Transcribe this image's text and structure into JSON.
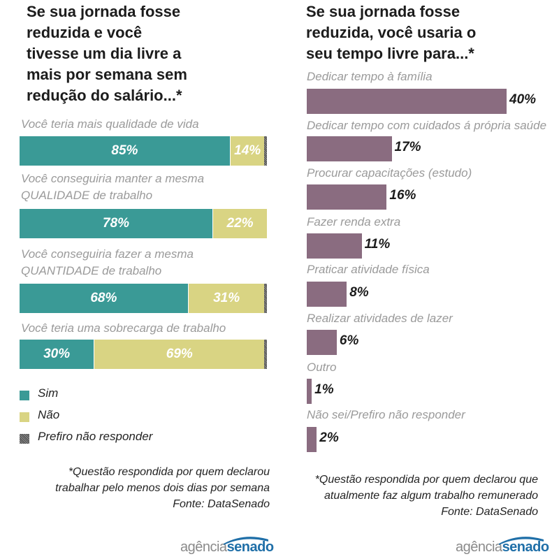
{
  "left": {
    "title": "Se sua jornada fosse\nreduzida e você\ntivesse um dia livre a\nmais por semana sem\nredução do salário...*",
    "chart_data": {
      "type": "bar",
      "stacked": true,
      "orientation": "horizontal",
      "categories": [
        "Você teria mais qualidade de vida",
        "Você conseguiria manter a mesma QUALIDADE de trabalho",
        "Você conseguiria fazer a mesma QUANTIDADE de trabalho",
        "Você teria uma sobrecarga de trabalho"
      ],
      "category_lines": [
        [
          "Você teria mais qualidade de vida"
        ],
        [
          "Você conseguiria manter a mesma",
          "QUALIDADE de trabalho"
        ],
        [
          "Você conseguiria fazer a mesma",
          "QUANTIDADE de trabalho"
        ],
        [
          "Você teria uma sobrecarga de trabalho"
        ]
      ],
      "series": [
        {
          "name": "Sim",
          "values": [
            85,
            78,
            68,
            30
          ],
          "labels": [
            "85%",
            "78%",
            "68%",
            "30%"
          ],
          "color": "#3a9a96"
        },
        {
          "name": "Não",
          "values": [
            14,
            22,
            31,
            69
          ],
          "labels": [
            "14%",
            "22%",
            "31%",
            "69%"
          ],
          "color": "#d9d483"
        },
        {
          "name": "Prefiro não responder",
          "values": [
            1,
            0,
            1,
            1
          ],
          "color": "#777777"
        }
      ]
    },
    "legend": [
      {
        "label": "Sim",
        "color": "#3a9a96"
      },
      {
        "label": "Não",
        "color": "#d9d483"
      },
      {
        "label": "Prefiro não responder",
        "color": "#777777"
      }
    ],
    "note": "*Questão respondida por quem declarou\ntrabalhar pelo menos dois dias por semana",
    "source": "Fonte: DataSenado"
  },
  "right": {
    "title": "Se sua jornada fosse\nreduzida, você usaria o\nseu tempo livre para...*",
    "chart_data": {
      "type": "bar",
      "orientation": "horizontal",
      "categories": [
        "Dedicar tempo à família",
        "Dedicar tempo com cuidados á própria saúde",
        "Procurar capacitações (estudo)",
        "Fazer renda extra",
        "Praticar atividade física",
        "Realizar atividades de lazer",
        "Outro",
        "Não sei/Prefiro não responder"
      ],
      "values": [
        40,
        17,
        16,
        11,
        8,
        6,
        1,
        2
      ],
      "labels": [
        "40%",
        "17%",
        "16%",
        "11%",
        "8%",
        "6%",
        "1%",
        "2%"
      ],
      "color": "#8a6c80"
    },
    "note": "*Questão respondida por quem declarou que\natualmente faz algum trabalho remunerado",
    "source": "Fonte: DataSenado"
  },
  "logo": {
    "part1": "agência",
    "part2": "senado",
    "accent": "#1f6fa8"
  }
}
